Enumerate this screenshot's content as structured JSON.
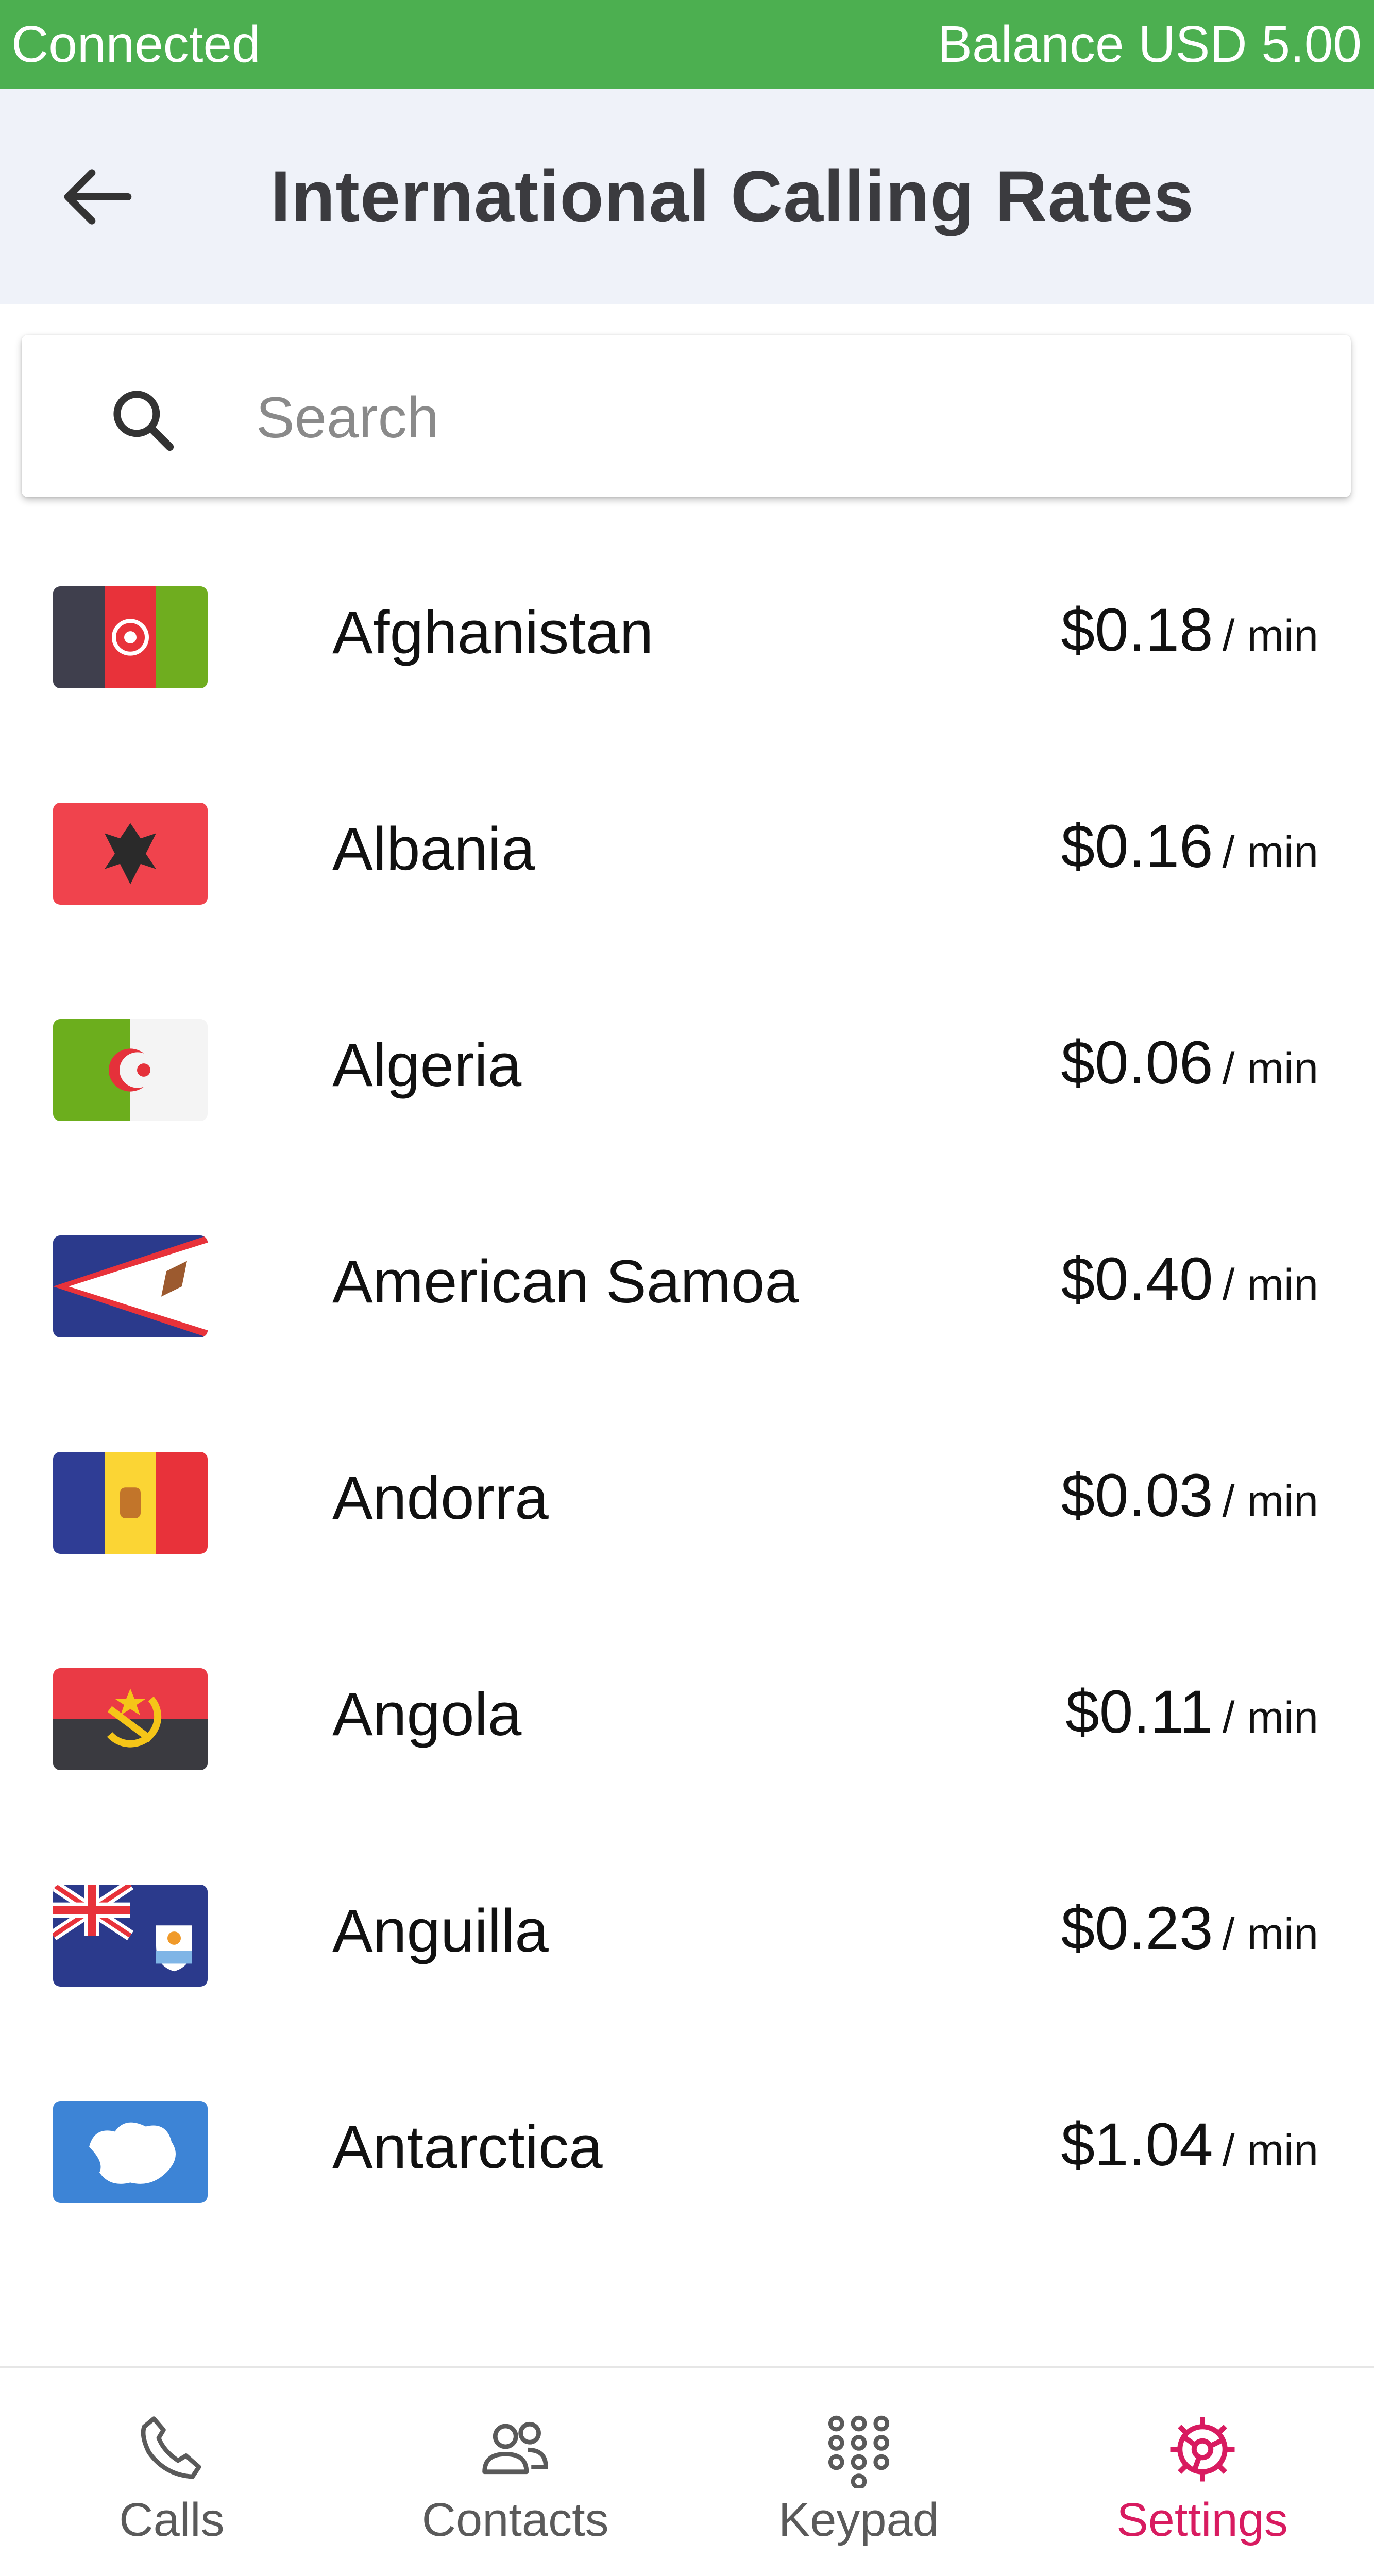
{
  "status_bar": {
    "connection": "Connected",
    "balance": "Balance USD 5.00",
    "color": "#4caf50"
  },
  "header": {
    "title": "International Calling Rates",
    "back_icon": "back-arrow-icon"
  },
  "search": {
    "placeholder": "Search",
    "value": "",
    "icon": "search-icon"
  },
  "rates": [
    {
      "country": "Afghanistan",
      "price": "$0.18",
      "unit": "/ min"
    },
    {
      "country": "Albania",
      "price": "$0.16",
      "unit": "/ min"
    },
    {
      "country": "Algeria",
      "price": "$0.06",
      "unit": "/ min"
    },
    {
      "country": "American Samoa",
      "price": "$0.40",
      "unit": "/ min"
    },
    {
      "country": "Andorra",
      "price": "$0.03",
      "unit": "/ min"
    },
    {
      "country": "Angola",
      "price": "$0.11",
      "unit": "/ min"
    },
    {
      "country": "Anguilla",
      "price": "$0.23",
      "unit": "/ min"
    },
    {
      "country": "Antarctica",
      "price": "$1.04",
      "unit": "/ min"
    }
  ],
  "bottom_nav": {
    "active_color": "#d81b60",
    "items": [
      {
        "label": "Calls",
        "icon": "phone-icon"
      },
      {
        "label": "Contacts",
        "icon": "contacts-icon"
      },
      {
        "label": "Keypad",
        "icon": "keypad-icon"
      },
      {
        "label": "Settings",
        "icon": "gear-icon",
        "active": true
      }
    ]
  }
}
